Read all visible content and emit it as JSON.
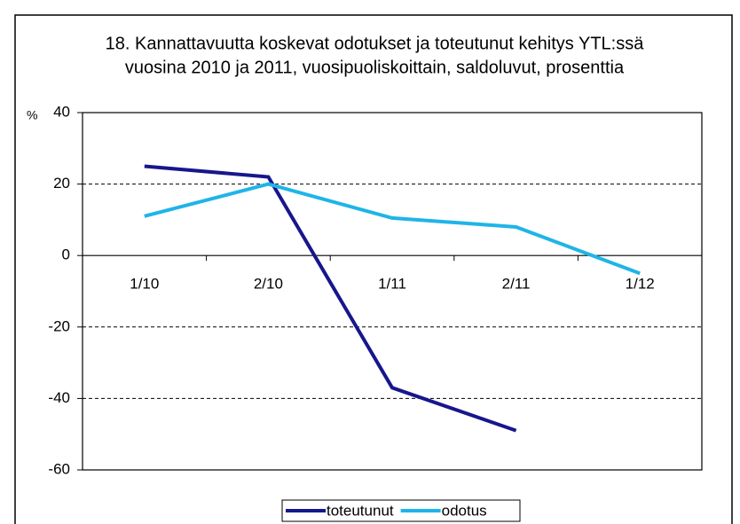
{
  "chart_data": {
    "type": "line",
    "title": [
      "18. Kannattavuutta koskevat odotukset ja toteutunut kehitys YTL:ssä",
      "vuosina 2010 ja 2011, vuosipuoliskoittain, saldoluvut, prosenttia"
    ],
    "y_axis_label": "%",
    "categories": [
      "1/10",
      "2/10",
      "1/11",
      "2/11",
      "1/12"
    ],
    "series": [
      {
        "name": "toteutunut",
        "color": "#17168c",
        "values": [
          25,
          22,
          -37,
          -49,
          null
        ]
      },
      {
        "name": "odotus",
        "color": "#1fb4e8",
        "values": [
          11,
          20,
          10.5,
          8,
          -5
        ]
      }
    ],
    "ylim": [
      -60,
      40
    ],
    "yticks": [
      -60,
      -40,
      -20,
      0,
      20,
      40
    ],
    "grid": true,
    "legend": "bottom"
  }
}
